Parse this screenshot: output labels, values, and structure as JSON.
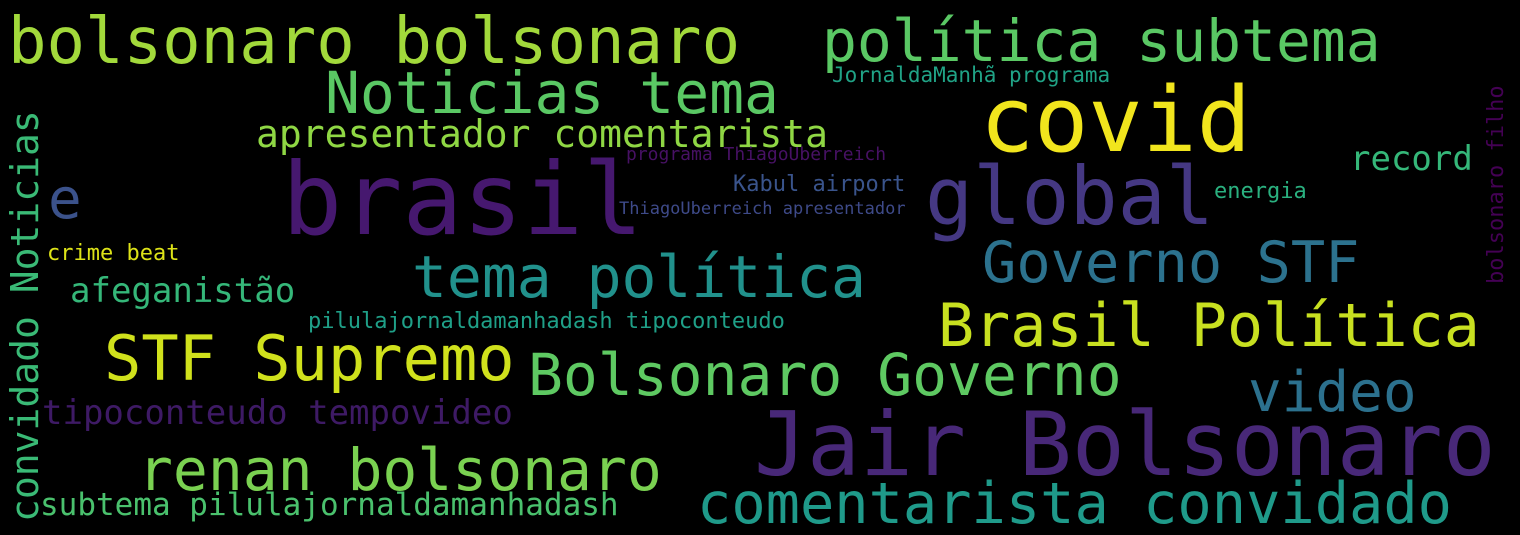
{
  "words": [
    {
      "text": "bolsonaro bolsonaro",
      "color": "#a2d93b"
    },
    {
      "text": "política subtema",
      "color": "#5ac864"
    },
    {
      "text": "Noticias tema",
      "color": "#5ac864"
    },
    {
      "text": "JornaldaManhã programa",
      "color": "#20a386"
    },
    {
      "text": "covid",
      "color": "#f1e51d"
    },
    {
      "text": "apresentador comentarista",
      "color": "#8fd744"
    },
    {
      "text": "programa ThiagoUberreich",
      "color": "#471164"
    },
    {
      "text": "record",
      "color": "#35b779"
    },
    {
      "text": "brasil",
      "color": "#46186f"
    },
    {
      "text": "global",
      "color": "#453883"
    },
    {
      "text": "Kabul airport",
      "color": "#3a548c"
    },
    {
      "text": "energia",
      "color": "#2ab07f"
    },
    {
      "text": "ThiagoUberreich apresentador",
      "color": "#3e4a89"
    },
    {
      "text": "e",
      "color": "#3b528b"
    },
    {
      "text": "crime beat",
      "color": "#dde318"
    },
    {
      "text": "tema política",
      "color": "#21918c"
    },
    {
      "text": "Governo STF",
      "color": "#2c728e"
    },
    {
      "text": "afeganistão",
      "color": "#35b779"
    },
    {
      "text": "pilulajornaldamanhadash tipoconteudo",
      "color": "#1fa088"
    },
    {
      "text": "Brasil Política",
      "color": "#c8e020"
    },
    {
      "text": "STF Supremo",
      "color": "#d0e11c"
    },
    {
      "text": "Bolsonaro Governo",
      "color": "#5ec962"
    },
    {
      "text": "video",
      "color": "#2c718e"
    },
    {
      "text": "tipoconteudo tempovideo",
      "color": "#3e1a65"
    },
    {
      "text": "Jair Bolsonaro",
      "color": "#482878"
    },
    {
      "text": "renan bolsonaro",
      "color": "#7ad151"
    },
    {
      "text": "comentarista convidado",
      "color": "#1f9a8a"
    },
    {
      "text": "subtema pilulajornaldamanhadash",
      "color": "#4ac16d"
    },
    {
      "text": "convidado Noticias",
      "color": "#3aba76"
    },
    {
      "text": "bolsonaro filho",
      "color": "#440154"
    }
  ]
}
